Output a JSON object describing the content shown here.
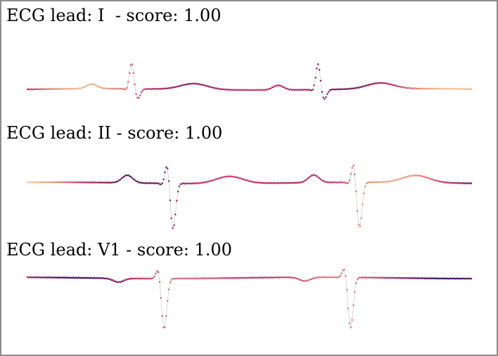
{
  "colors": {
    "low": "#2c0f5c",
    "mid": "#c3386c",
    "high": "#f8d79a",
    "trace": "#bfbfbf",
    "frame": "#8c8c8c"
  },
  "chart_data": [
    {
      "type": "line",
      "title": "ECG lead: I  - score: 1.00",
      "lead": "I",
      "score": "1.00",
      "beats_at": [
        0.235,
        0.655
      ],
      "morphology": {
        "p": 0.55,
        "q": -0.15,
        "r": 3.1,
        "s": -1.2,
        "t": 0.7,
        "noise": 0.03
      }
    },
    {
      "type": "line",
      "title": "ECG lead: II - score: 1.00",
      "lead": "II",
      "score": "1.00",
      "beats_at": [
        0.315,
        0.735
      ],
      "morphology": {
        "p": 0.9,
        "q": -0.2,
        "r": 2.4,
        "s": -5.4,
        "t": 0.85,
        "noise": 0.03
      }
    },
    {
      "type": "line",
      "title": "ECG lead: V1 - score: 1.00",
      "lead": "V1",
      "score": "1.00",
      "beats_at": [
        0.295,
        0.715
      ],
      "morphology": {
        "p": -0.45,
        "q": 0.0,
        "r": 1.3,
        "s": -6.0,
        "t": 0.0,
        "noise": 0.03
      }
    }
  ]
}
